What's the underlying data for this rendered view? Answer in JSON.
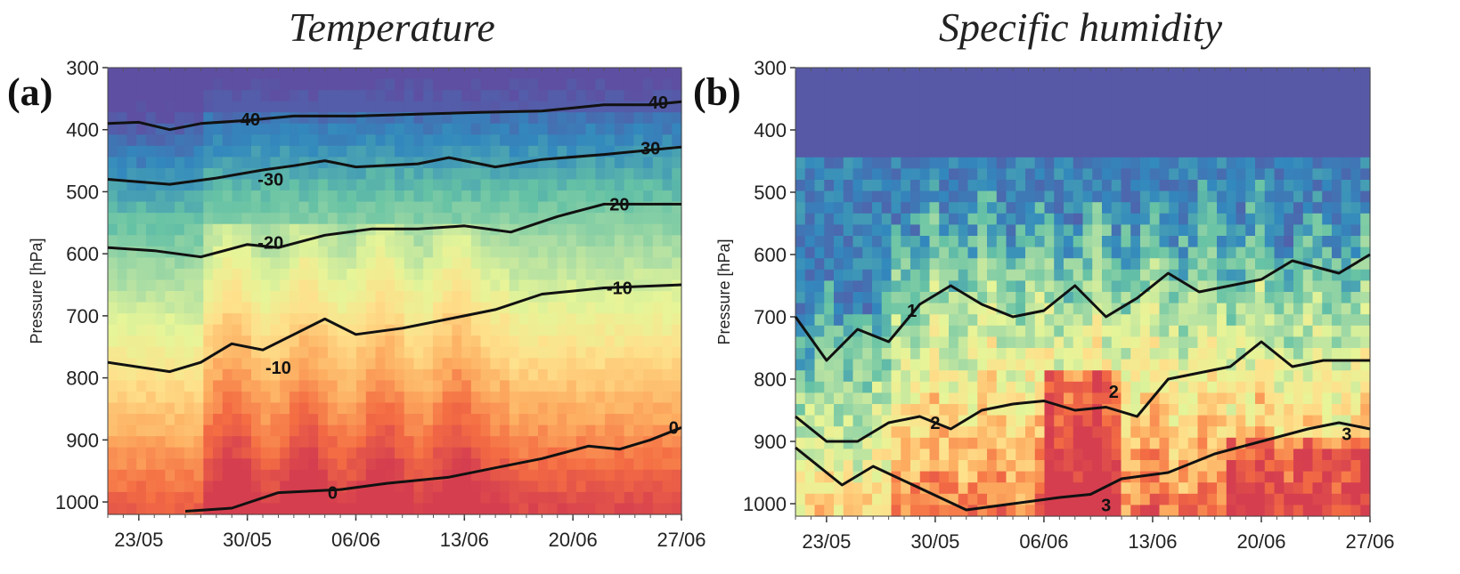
{
  "panels": [
    {
      "letter": "(a)",
      "title": "Temperature"
    },
    {
      "letter": "(b)",
      "title": "Specific humidity"
    }
  ],
  "chart_data": [
    {
      "type": "heatmap",
      "title": "Temperature",
      "panel_label": "(a)",
      "ylabel": "Pressure [hPa]",
      "ylim": [
        1020,
        300
      ],
      "y_reversed": true,
      "yticks": [
        300,
        400,
        500,
        600,
        700,
        800,
        900,
        1000
      ],
      "xticks": [
        "23/05",
        "30/05",
        "06/06",
        "13/06",
        "20/06",
        "27/06"
      ],
      "x_range_days": [
        -2,
        35
      ],
      "colormap": "spectral",
      "contours": [
        {
          "label": "-40",
          "x": [
            -2,
            0,
            2,
            4,
            7,
            10,
            14,
            18,
            22,
            26,
            30,
            33,
            35
          ],
          "y": [
            390,
            388,
            400,
            390,
            385,
            378,
            378,
            375,
            372,
            370,
            360,
            360,
            355
          ]
        },
        {
          "label": "-30",
          "x": [
            -2,
            2,
            5,
            8,
            10,
            12,
            14,
            18,
            20,
            23,
            26,
            30,
            35
          ],
          "y": [
            480,
            488,
            478,
            465,
            458,
            450,
            460,
            455,
            445,
            460,
            448,
            440,
            428
          ]
        },
        {
          "label": "-20",
          "x": [
            -2,
            1,
            4,
            7,
            9,
            12,
            15,
            18,
            21,
            24,
            27,
            30,
            35
          ],
          "y": [
            590,
            595,
            605,
            585,
            590,
            570,
            560,
            560,
            555,
            565,
            540,
            520,
            520
          ]
        },
        {
          "label": "-10",
          "x": [
            -2,
            2,
            4,
            6,
            8,
            10,
            12,
            14,
            17,
            20,
            23,
            26,
            30,
            35
          ],
          "y": [
            775,
            790,
            775,
            745,
            755,
            730,
            705,
            730,
            720,
            705,
            690,
            665,
            655,
            650
          ]
        },
        {
          "label": "0",
          "x": [
            3,
            6,
            9,
            13,
            16,
            20,
            23,
            26,
            29,
            31,
            33,
            35
          ],
          "y": [
            1015,
            1010,
            985,
            980,
            970,
            960,
            945,
            930,
            910,
            915,
            900,
            880
          ]
        }
      ],
      "contour_labels": [
        {
          "text": "-40",
          "x": 7,
          "y": 383
        },
        {
          "text": "40",
          "x": 33.5,
          "y": 356
        },
        {
          "text": "-30",
          "x": 8.5,
          "y": 480
        },
        {
          "text": "30",
          "x": 33,
          "y": 430
        },
        {
          "text": "-20",
          "x": 8.5,
          "y": 582
        },
        {
          "text": "20",
          "x": 31,
          "y": 520
        },
        {
          "text": "-10",
          "x": 9,
          "y": 783
        },
        {
          "text": "-10",
          "x": 31,
          "y": 655
        },
        {
          "text": "0",
          "x": 12.5,
          "y": 985
        },
        {
          "text": "0",
          "x": 34.5,
          "y": 880
        }
      ]
    },
    {
      "type": "heatmap",
      "title": "Specific humidity",
      "panel_label": "(b)",
      "ylabel": "Pressure [hPa]",
      "ylim": [
        1020,
        300
      ],
      "y_reversed": true,
      "yticks": [
        300,
        400,
        500,
        600,
        700,
        800,
        900,
        1000
      ],
      "xticks": [
        "23/05",
        "30/05",
        "06/06",
        "13/06",
        "20/06",
        "27/06"
      ],
      "x_range_days": [
        -2,
        35
      ],
      "colormap": "spectral",
      "contours": [
        {
          "label": "1",
          "x": [
            -2,
            0,
            2,
            4,
            6,
            8,
            10,
            12,
            14,
            16,
            18,
            20,
            22,
            24,
            26,
            28,
            30,
            33,
            35
          ],
          "y": [
            700,
            770,
            720,
            740,
            680,
            650,
            680,
            700,
            690,
            650,
            700,
            670,
            630,
            660,
            650,
            640,
            610,
            630,
            600
          ]
        },
        {
          "label": "2",
          "x": [
            -2,
            0,
            2,
            4,
            6,
            8,
            10,
            12,
            14,
            16,
            18,
            20,
            22,
            24,
            26,
            28,
            30,
            32,
            35
          ],
          "y": [
            860,
            900,
            900,
            870,
            860,
            880,
            850,
            840,
            835,
            850,
            845,
            860,
            800,
            790,
            780,
            740,
            780,
            770,
            770
          ]
        },
        {
          "label": "3",
          "x": [
            -2,
            1,
            3,
            6,
            9,
            12,
            15,
            17,
            19,
            22,
            25,
            28,
            31,
            33,
            35
          ],
          "y": [
            910,
            970,
            940,
            975,
            1010,
            1000,
            990,
            985,
            960,
            950,
            920,
            900,
            880,
            870,
            880
          ]
        }
      ],
      "contour_labels": [
        {
          "text": "1",
          "x": 5.5,
          "y": 690
        },
        {
          "text": "2",
          "x": 7,
          "y": 870
        },
        {
          "text": "2",
          "x": 18.5,
          "y": 820
        },
        {
          "text": "3",
          "x": 33.5,
          "y": 888
        },
        {
          "text": "3",
          "x": 18,
          "y": 1002
        }
      ]
    }
  ]
}
